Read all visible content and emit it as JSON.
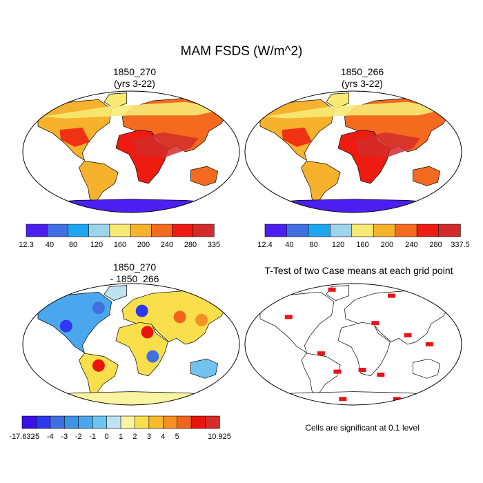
{
  "title": "MAM FSDS (W/m^2)",
  "panels": [
    {
      "id": "p1",
      "title": "1850_270\n(yrs 3-22)",
      "kind": "field"
    },
    {
      "id": "p2",
      "title": "1850_266\n(yrs 3-22)",
      "kind": "field"
    },
    {
      "id": "p3",
      "title": "1850_270\n- 1850_266",
      "kind": "difference"
    },
    {
      "id": "p4",
      "title": "T-Test of two Case means at each grid point",
      "kind": "ttest"
    }
  ],
  "colorbars": [
    {
      "id": "cb1",
      "labels": [
        "12.3",
        "40",
        "80",
        "120",
        "160",
        "200",
        "240",
        "280",
        "335"
      ],
      "colors": [
        "#4b1ff0",
        "#3f6fe0",
        "#1ea7f0",
        "#9ed3ec",
        "#f7ea74",
        "#f6b22d",
        "#f46a1e",
        "#ee1b10",
        "#d32b2b"
      ]
    },
    {
      "id": "cb2",
      "labels": [
        "12.4",
        "40",
        "80",
        "120",
        "160",
        "200",
        "240",
        "280",
        "337.5"
      ],
      "colors": [
        "#4b1ff0",
        "#3f6fe0",
        "#1ea7f0",
        "#9ed3ec",
        "#f7ea74",
        "#f6b22d",
        "#f46a1e",
        "#ee1b10",
        "#d32b2b"
      ]
    },
    {
      "id": "cb3",
      "labels": [
        "-17.632",
        "-5",
        "-4",
        "-3",
        "-2",
        "-1",
        "0",
        "1",
        "2",
        "3",
        "4",
        "5",
        "10.925"
      ],
      "colors": [
        "#3a10e6",
        "#2e38f0",
        "#3f6fe0",
        "#3f93e6",
        "#4aa7ee",
        "#6fc3ee",
        "#bde3f0",
        "#f9f3a2",
        "#f9df4c",
        "#f9ba2b",
        "#f59022",
        "#f3641b",
        "#e8150e",
        "#d72a2a"
      ]
    }
  ],
  "footnote": "Cells are significant at 0.1 level",
  "chart_data": [
    {
      "type": "heatmap",
      "title": "1850_270 (yrs 3-22)",
      "variable": "MAM FSDS (W/m^2)",
      "min": 12.3,
      "max": 335,
      "levels": [
        40,
        80,
        120,
        160,
        200,
        240,
        280
      ]
    },
    {
      "type": "heatmap",
      "title": "1850_266 (yrs 3-22)",
      "variable": "MAM FSDS (W/m^2)",
      "min": 12.4,
      "max": 337.5,
      "levels": [
        40,
        80,
        120,
        160,
        200,
        240,
        280
      ]
    },
    {
      "type": "heatmap",
      "title": "1850_270 - 1850_266",
      "variable": "MAM FSDS (W/m^2)",
      "min": -17.632,
      "max": 10.925,
      "levels": [
        -5,
        -4,
        -3,
        -2,
        -1,
        0,
        1,
        2,
        3,
        4,
        5
      ]
    },
    {
      "type": "heatmap",
      "title": "T-Test of two Case means at each grid point",
      "note": "Cells are significant at 0.1 level",
      "fill": "#e8141a"
    }
  ]
}
